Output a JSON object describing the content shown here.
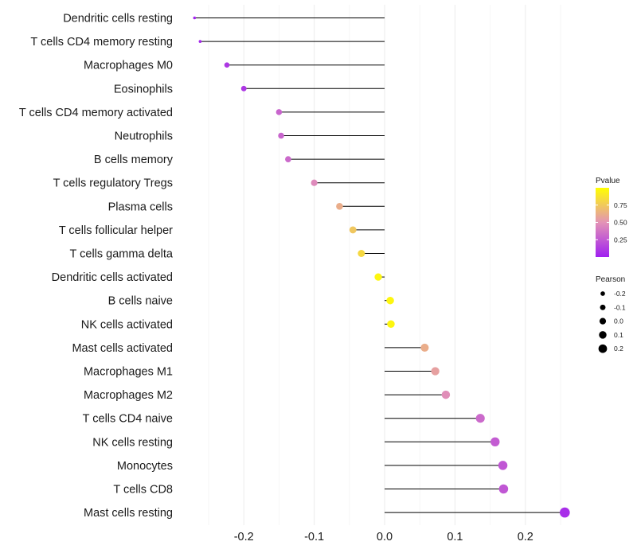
{
  "chart_data": {
    "type": "lollipop",
    "x_ticks": [
      "-0.2",
      "-0.1",
      "0.0",
      "0.1",
      "0.2"
    ],
    "xlim": [
      -0.27,
      0.26
    ],
    "rows": [
      {
        "label": "Dendritic cells resting",
        "value": -0.27,
        "pvalue": 0.02
      },
      {
        "label": "T cells CD4 memory resting",
        "value": -0.262,
        "pvalue": 0.04
      },
      {
        "label": "Macrophages M0",
        "value": -0.224,
        "pvalue": 0.1
      },
      {
        "label": "Eosinophils",
        "value": -0.2,
        "pvalue": 0.1
      },
      {
        "label": "T cells CD4 memory activated",
        "value": -0.15,
        "pvalue": 0.3
      },
      {
        "label": "Neutrophils",
        "value": -0.147,
        "pvalue": 0.3
      },
      {
        "label": "B cells memory",
        "value": -0.137,
        "pvalue": 0.32
      },
      {
        "label": "T cells regulatory  Tregs ",
        "value": -0.1,
        "pvalue": 0.46
      },
      {
        "label": "Plasma cells",
        "value": -0.064,
        "pvalue": 0.62
      },
      {
        "label": "T cells follicular helper",
        "value": -0.045,
        "pvalue": 0.74
      },
      {
        "label": "T cells gamma delta",
        "value": -0.033,
        "pvalue": 0.82
      },
      {
        "label": "Dendritic cells activated",
        "value": -0.009,
        "pvalue": 0.96
      },
      {
        "label": "B cells naive",
        "value": 0.008,
        "pvalue": 0.96
      },
      {
        "label": "NK cells activated",
        "value": 0.009,
        "pvalue": 0.96
      },
      {
        "label": "Mast cells activated",
        "value": 0.057,
        "pvalue": 0.62
      },
      {
        "label": "Macrophages M1",
        "value": 0.072,
        "pvalue": 0.56
      },
      {
        "label": "Macrophages M2",
        "value": 0.087,
        "pvalue": 0.48
      },
      {
        "label": "T cells CD4 naive",
        "value": 0.136,
        "pvalue": 0.32
      },
      {
        "label": "NK cells resting",
        "value": 0.157,
        "pvalue": 0.26
      },
      {
        "label": "Monocytes",
        "value": 0.168,
        "pvalue": 0.24
      },
      {
        "label": "T cells CD8",
        "value": 0.169,
        "pvalue": 0.24
      },
      {
        "label": "Mast cells resting",
        "value": 0.256,
        "pvalue": 0.06
      }
    ],
    "legend_pvalue": {
      "title": "Pvalue",
      "labels": [
        "0.75",
        "0.50",
        "0.25"
      ],
      "label_values": [
        0.75,
        0.5,
        0.25
      ],
      "range": [
        0.0,
        1.0
      ],
      "colors": [
        "#a020f0",
        "#e393b6",
        "#ffff00"
      ]
    },
    "legend_pearson": {
      "title": "Pearson",
      "labels": [
        "-0.2",
        "-0.1",
        "0.0",
        "0.1",
        "0.2"
      ],
      "values": [
        -0.2,
        -0.1,
        0.0,
        0.1,
        0.2
      ],
      "color": "#000000"
    }
  }
}
